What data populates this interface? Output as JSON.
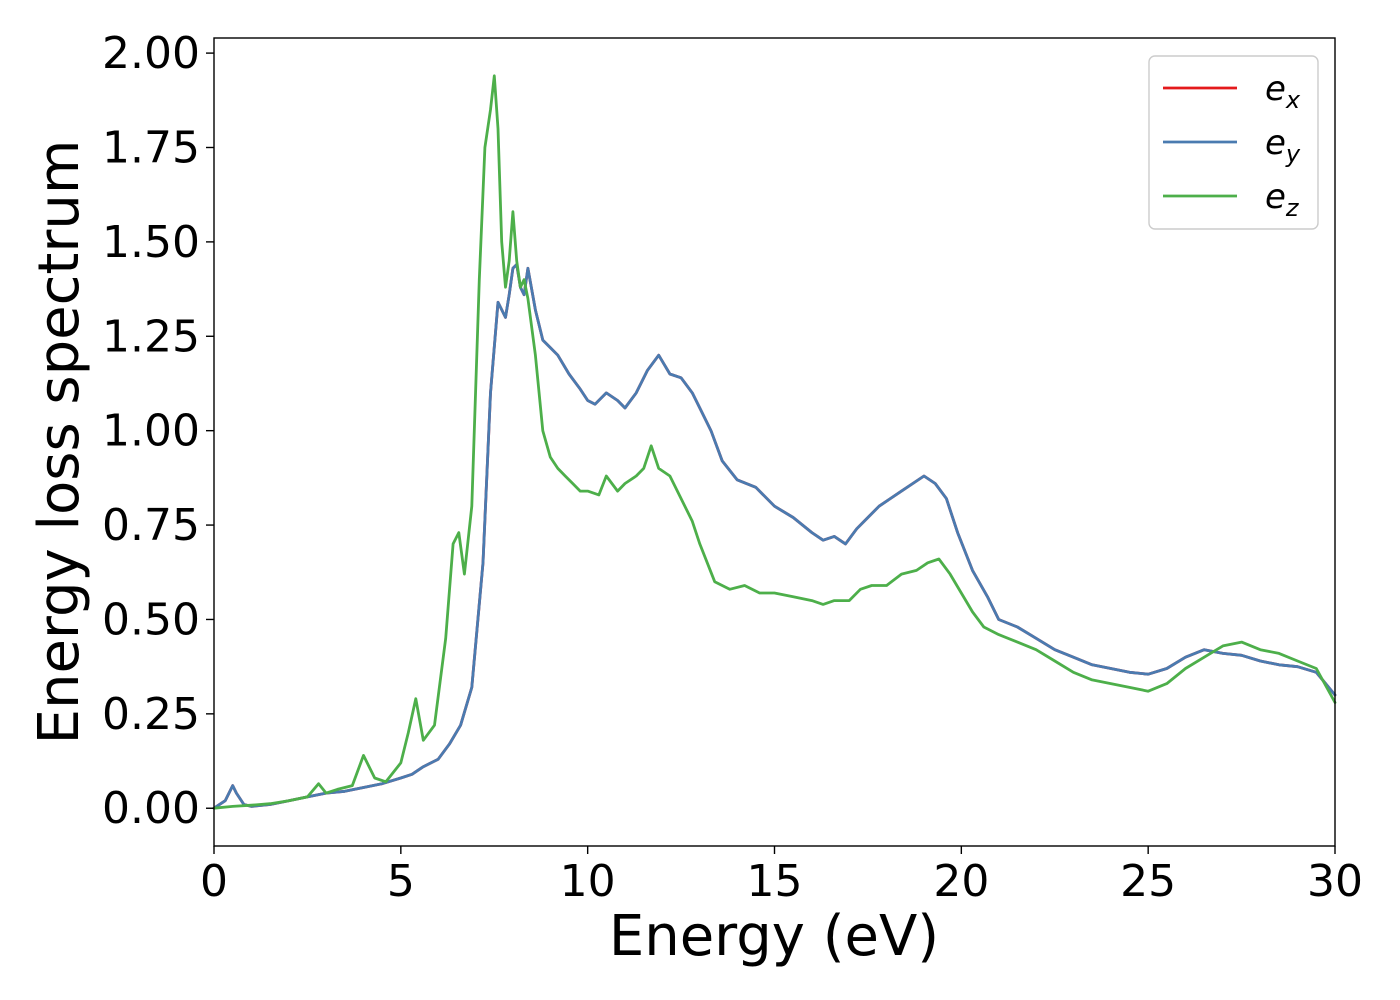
{
  "chart_data": {
    "type": "line",
    "xlabel": "Energy (eV)",
    "ylabel": "Energy loss spectrum",
    "xlim": [
      0,
      30
    ],
    "ylim": [
      -0.1,
      2.04
    ],
    "xticks": [
      0,
      5,
      10,
      15,
      20,
      25,
      30
    ],
    "xtick_labels": [
      "0",
      "5",
      "10",
      "15",
      "20",
      "25",
      "30"
    ],
    "yticks": [
      0.0,
      0.25,
      0.5,
      0.75,
      1.0,
      1.25,
      1.5,
      1.75,
      2.0
    ],
    "ytick_labels": [
      "0.00",
      "0.25",
      "0.50",
      "0.75",
      "1.00",
      "1.25",
      "1.50",
      "1.75",
      "2.00"
    ],
    "grid": false,
    "legend_position": "upper-right",
    "series": [
      {
        "name": "e_x",
        "legend_base": "e",
        "legend_sub": "x",
        "color": "#e41a1c",
        "x": [
          0,
          0.3,
          0.5,
          0.6,
          0.8,
          1.0,
          1.5,
          2.0,
          2.5,
          3.0,
          3.5,
          4.0,
          4.5,
          5.0,
          5.3,
          5.6,
          6.0,
          6.3,
          6.6,
          6.9,
          7.2,
          7.4,
          7.6,
          7.8,
          7.9,
          8.0,
          8.1,
          8.2,
          8.3,
          8.4,
          8.6,
          8.8,
          9.0,
          9.2,
          9.5,
          9.8,
          10.0,
          10.2,
          10.5,
          10.8,
          11.0,
          11.3,
          11.6,
          11.9,
          12.2,
          12.5,
          12.8,
          13.0,
          13.3,
          13.6,
          14.0,
          14.5,
          15.0,
          15.5,
          16.0,
          16.3,
          16.6,
          16.9,
          17.2,
          17.5,
          17.8,
          18.1,
          18.4,
          18.7,
          19.0,
          19.3,
          19.6,
          19.9,
          20.3,
          20.7,
          21.0,
          21.5,
          22.0,
          22.5,
          23.0,
          23.5,
          24.0,
          24.5,
          25.0,
          25.5,
          26.0,
          26.5,
          27.0,
          27.5,
          28.0,
          28.5,
          29.0,
          29.5,
          30.0
        ],
        "y": [
          0.0,
          0.02,
          0.06,
          0.04,
          0.01,
          0.005,
          0.01,
          0.02,
          0.03,
          0.04,
          0.045,
          0.055,
          0.065,
          0.08,
          0.09,
          0.11,
          0.13,
          0.17,
          0.22,
          0.32,
          0.65,
          1.1,
          1.34,
          1.3,
          1.36,
          1.43,
          1.44,
          1.38,
          1.36,
          1.43,
          1.32,
          1.24,
          1.22,
          1.2,
          1.15,
          1.11,
          1.08,
          1.07,
          1.1,
          1.08,
          1.06,
          1.1,
          1.16,
          1.2,
          1.15,
          1.14,
          1.1,
          1.06,
          1.0,
          0.92,
          0.87,
          0.85,
          0.8,
          0.77,
          0.73,
          0.71,
          0.72,
          0.7,
          0.74,
          0.77,
          0.8,
          0.82,
          0.84,
          0.86,
          0.88,
          0.86,
          0.82,
          0.73,
          0.63,
          0.56,
          0.5,
          0.48,
          0.45,
          0.42,
          0.4,
          0.38,
          0.37,
          0.36,
          0.355,
          0.37,
          0.4,
          0.42,
          0.41,
          0.405,
          0.39,
          0.38,
          0.375,
          0.36,
          0.3
        ]
      },
      {
        "name": "e_y",
        "legend_base": "e",
        "legend_sub": "y",
        "color": "#4a7bb0",
        "x": [
          0,
          0.3,
          0.5,
          0.6,
          0.8,
          1.0,
          1.5,
          2.0,
          2.5,
          3.0,
          3.5,
          4.0,
          4.5,
          5.0,
          5.3,
          5.6,
          6.0,
          6.3,
          6.6,
          6.9,
          7.2,
          7.4,
          7.6,
          7.8,
          7.9,
          8.0,
          8.1,
          8.2,
          8.3,
          8.4,
          8.6,
          8.8,
          9.0,
          9.2,
          9.5,
          9.8,
          10.0,
          10.2,
          10.5,
          10.8,
          11.0,
          11.3,
          11.6,
          11.9,
          12.2,
          12.5,
          12.8,
          13.0,
          13.3,
          13.6,
          14.0,
          14.5,
          15.0,
          15.5,
          16.0,
          16.3,
          16.6,
          16.9,
          17.2,
          17.5,
          17.8,
          18.1,
          18.4,
          18.7,
          19.0,
          19.3,
          19.6,
          19.9,
          20.3,
          20.7,
          21.0,
          21.5,
          22.0,
          22.5,
          23.0,
          23.5,
          24.0,
          24.5,
          25.0,
          25.5,
          26.0,
          26.5,
          27.0,
          27.5,
          28.0,
          28.5,
          29.0,
          29.5,
          30.0
        ],
        "y": [
          0.0,
          0.02,
          0.06,
          0.04,
          0.01,
          0.005,
          0.01,
          0.02,
          0.03,
          0.04,
          0.045,
          0.055,
          0.065,
          0.08,
          0.09,
          0.11,
          0.13,
          0.17,
          0.22,
          0.32,
          0.65,
          1.1,
          1.34,
          1.3,
          1.36,
          1.43,
          1.44,
          1.38,
          1.36,
          1.43,
          1.32,
          1.24,
          1.22,
          1.2,
          1.15,
          1.11,
          1.08,
          1.07,
          1.1,
          1.08,
          1.06,
          1.1,
          1.16,
          1.2,
          1.15,
          1.14,
          1.1,
          1.06,
          1.0,
          0.92,
          0.87,
          0.85,
          0.8,
          0.77,
          0.73,
          0.71,
          0.72,
          0.7,
          0.74,
          0.77,
          0.8,
          0.82,
          0.84,
          0.86,
          0.88,
          0.86,
          0.82,
          0.73,
          0.63,
          0.56,
          0.5,
          0.48,
          0.45,
          0.42,
          0.4,
          0.38,
          0.37,
          0.36,
          0.355,
          0.37,
          0.4,
          0.42,
          0.41,
          0.405,
          0.39,
          0.38,
          0.375,
          0.36,
          0.3
        ]
      },
      {
        "name": "e_z",
        "legend_base": "e",
        "legend_sub": "z",
        "color": "#4daf4a",
        "x": [
          0,
          0.5,
          1.0,
          1.5,
          2.0,
          2.5,
          2.8,
          3.0,
          3.3,
          3.7,
          4.0,
          4.3,
          4.6,
          5.0,
          5.2,
          5.4,
          5.6,
          5.9,
          6.2,
          6.4,
          6.55,
          6.7,
          6.9,
          7.1,
          7.25,
          7.4,
          7.5,
          7.6,
          7.7,
          7.8,
          7.9,
          8.0,
          8.1,
          8.2,
          8.3,
          8.4,
          8.6,
          8.8,
          9.0,
          9.2,
          9.4,
          9.6,
          9.8,
          10.0,
          10.3,
          10.5,
          10.8,
          11.0,
          11.3,
          11.5,
          11.7,
          11.9,
          12.2,
          12.5,
          12.8,
          13.0,
          13.4,
          13.8,
          14.2,
          14.6,
          15.0,
          15.5,
          16.0,
          16.3,
          16.6,
          17.0,
          17.3,
          17.6,
          18.0,
          18.4,
          18.8,
          19.1,
          19.4,
          19.7,
          20.0,
          20.3,
          20.6,
          21.0,
          21.5,
          22.0,
          22.5,
          23.0,
          23.5,
          24.0,
          24.5,
          25.0,
          25.5,
          26.0,
          26.5,
          27.0,
          27.5,
          28.0,
          28.5,
          29.0,
          29.5,
          30.0
        ],
        "y": [
          0.0,
          0.005,
          0.008,
          0.012,
          0.02,
          0.03,
          0.065,
          0.04,
          0.05,
          0.06,
          0.14,
          0.08,
          0.07,
          0.12,
          0.2,
          0.29,
          0.18,
          0.22,
          0.45,
          0.7,
          0.73,
          0.62,
          0.8,
          1.4,
          1.75,
          1.85,
          1.94,
          1.8,
          1.5,
          1.38,
          1.45,
          1.58,
          1.45,
          1.38,
          1.4,
          1.35,
          1.2,
          1.0,
          0.93,
          0.9,
          0.88,
          0.86,
          0.84,
          0.84,
          0.83,
          0.88,
          0.84,
          0.86,
          0.88,
          0.9,
          0.96,
          0.9,
          0.88,
          0.82,
          0.76,
          0.7,
          0.6,
          0.58,
          0.59,
          0.57,
          0.57,
          0.56,
          0.55,
          0.54,
          0.55,
          0.55,
          0.58,
          0.59,
          0.59,
          0.62,
          0.63,
          0.65,
          0.66,
          0.62,
          0.57,
          0.52,
          0.48,
          0.46,
          0.44,
          0.42,
          0.39,
          0.36,
          0.34,
          0.33,
          0.32,
          0.31,
          0.33,
          0.37,
          0.4,
          0.43,
          0.44,
          0.42,
          0.41,
          0.39,
          0.37,
          0.28
        ]
      }
    ]
  }
}
